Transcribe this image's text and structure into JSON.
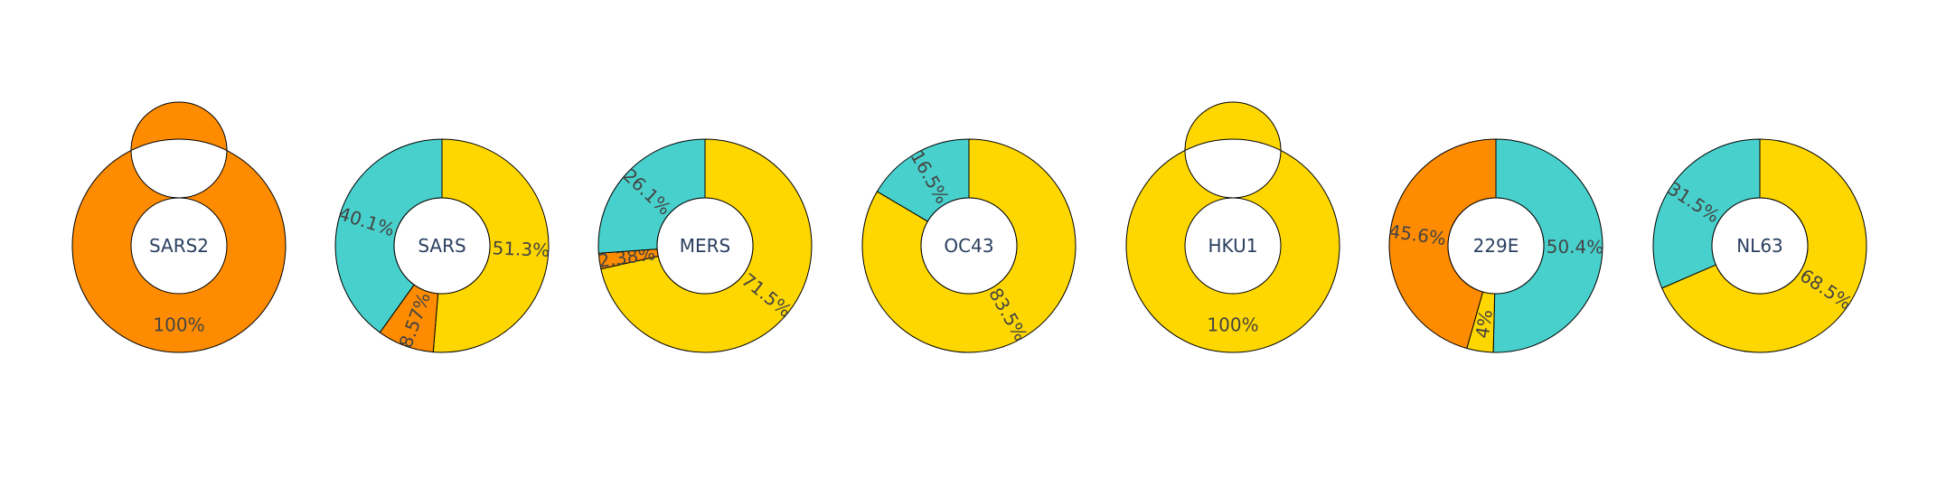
{
  "colors": {
    "SARS-CoV-2": "#FF8C00",
    "SARS-CoV": "#FF8C00",
    "teal": "#48D1CC",
    "yellow": "#FFD700",
    "orange": "#FF8C00"
  },
  "chart_data": {
    "type": "pie",
    "subtype": "donut",
    "charts": [
      {
        "center_label": "SARS2",
        "slices": [
          {
            "value": 100,
            "label": "100%",
            "color": "#FF8C00"
          }
        ]
      },
      {
        "center_label": "SARS",
        "slices": [
          {
            "value": 51.3,
            "label": "51.3%",
            "color": "#FFD700"
          },
          {
            "value": 8.57,
            "label": "8.57%",
            "color": "#FF8C00"
          },
          {
            "value": 40.1,
            "label": "40.1%",
            "color": "#48D1CC"
          }
        ]
      },
      {
        "center_label": "MERS",
        "slices": [
          {
            "value": 71.5,
            "label": "71.5%",
            "color": "#FFD700"
          },
          {
            "value": 2.38,
            "label": "2.38%",
            "color": "#FF8C00"
          },
          {
            "value": 26.1,
            "label": "26.1%",
            "color": "#48D1CC"
          }
        ]
      },
      {
        "center_label": "OC43",
        "slices": [
          {
            "value": 83.5,
            "label": "83.5%",
            "color": "#FFD700"
          },
          {
            "value": 16.5,
            "label": "16.5%",
            "color": "#48D1CC"
          }
        ]
      },
      {
        "center_label": "HKU1",
        "slices": [
          {
            "value": 100,
            "label": "100%",
            "color": "#FFD700"
          }
        ]
      },
      {
        "center_label": "229E",
        "slices": [
          {
            "value": 50.4,
            "label": "50.4%",
            "color": "#48D1CC"
          },
          {
            "value": 4,
            "label": "4%",
            "color": "#FFD700"
          },
          {
            "value": 45.6,
            "label": "45.6%",
            "color": "#FF8C00"
          }
        ]
      },
      {
        "center_label": "NL63",
        "slices": [
          {
            "value": 68.5,
            "label": "68.5%",
            "color": "#FFD700"
          },
          {
            "value": 31.5,
            "label": "31.5%",
            "color": "#48D1CC"
          }
        ]
      }
    ]
  }
}
